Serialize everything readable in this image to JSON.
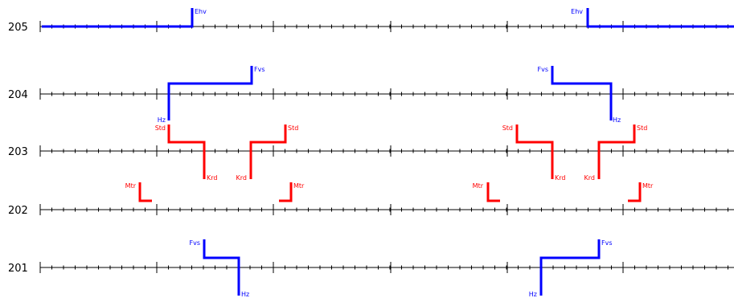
{
  "diagram": {
    "colors": {
      "axis": "#000000",
      "blue": "#0000ff",
      "red": "#ff0000"
    },
    "timelines": [
      {
        "id": "205",
        "label": "205"
      },
      {
        "id": "204",
        "label": "204"
      },
      {
        "id": "203",
        "label": "203"
      },
      {
        "id": "202",
        "label": "202"
      },
      {
        "id": "201",
        "label": "201"
      }
    ],
    "segment_labels": {
      "ehv": "Ehv",
      "fvs": "Fvs",
      "hz": "Hz",
      "std": "Std",
      "krd": "Krd",
      "mtr": "Mtr"
    }
  }
}
